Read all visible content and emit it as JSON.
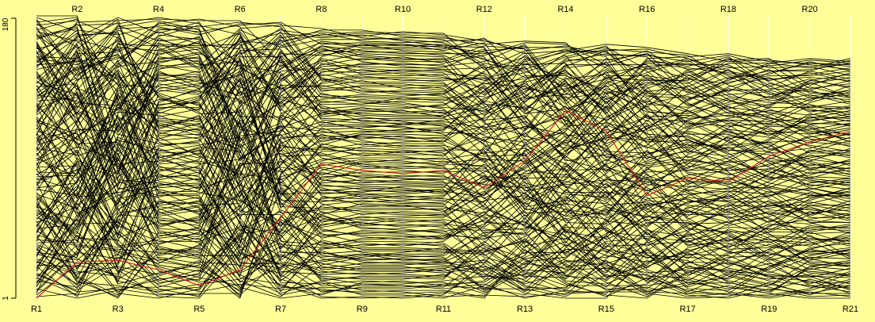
{
  "colors": {
    "background": "#ffff99",
    "line": "#000000",
    "highlight_line": "#cc2222",
    "axis_rule": "#ffffff"
  },
  "chart_data": {
    "type": "line",
    "variant": "parallel coordinates (rank-order chart, one polyline per item)",
    "axes": [
      "R1",
      "R2",
      "R3",
      "R4",
      "R5",
      "R6",
      "R7",
      "R8",
      "R9",
      "R10",
      "R11",
      "R12",
      "R13",
      "R14",
      "R15",
      "R16",
      "R17",
      "R18",
      "R19",
      "R20",
      "R21"
    ],
    "axis_label_positions": "odd-numbered axes labelled at bottom, even-numbered axes labelled at top",
    "y_axis": {
      "ticks": [
        "1",
        "180"
      ],
      "ylim": [
        1,
        180
      ]
    },
    "axis_max_rank": [
      180,
      180,
      179,
      179,
      178,
      177,
      176,
      172,
      171,
      170,
      169,
      166,
      164,
      163,
      162,
      160,
      156,
      156,
      153,
      153,
      153
    ],
    "series_count": 180,
    "highlighted_series": 1,
    "grid": false,
    "legend": "none"
  }
}
